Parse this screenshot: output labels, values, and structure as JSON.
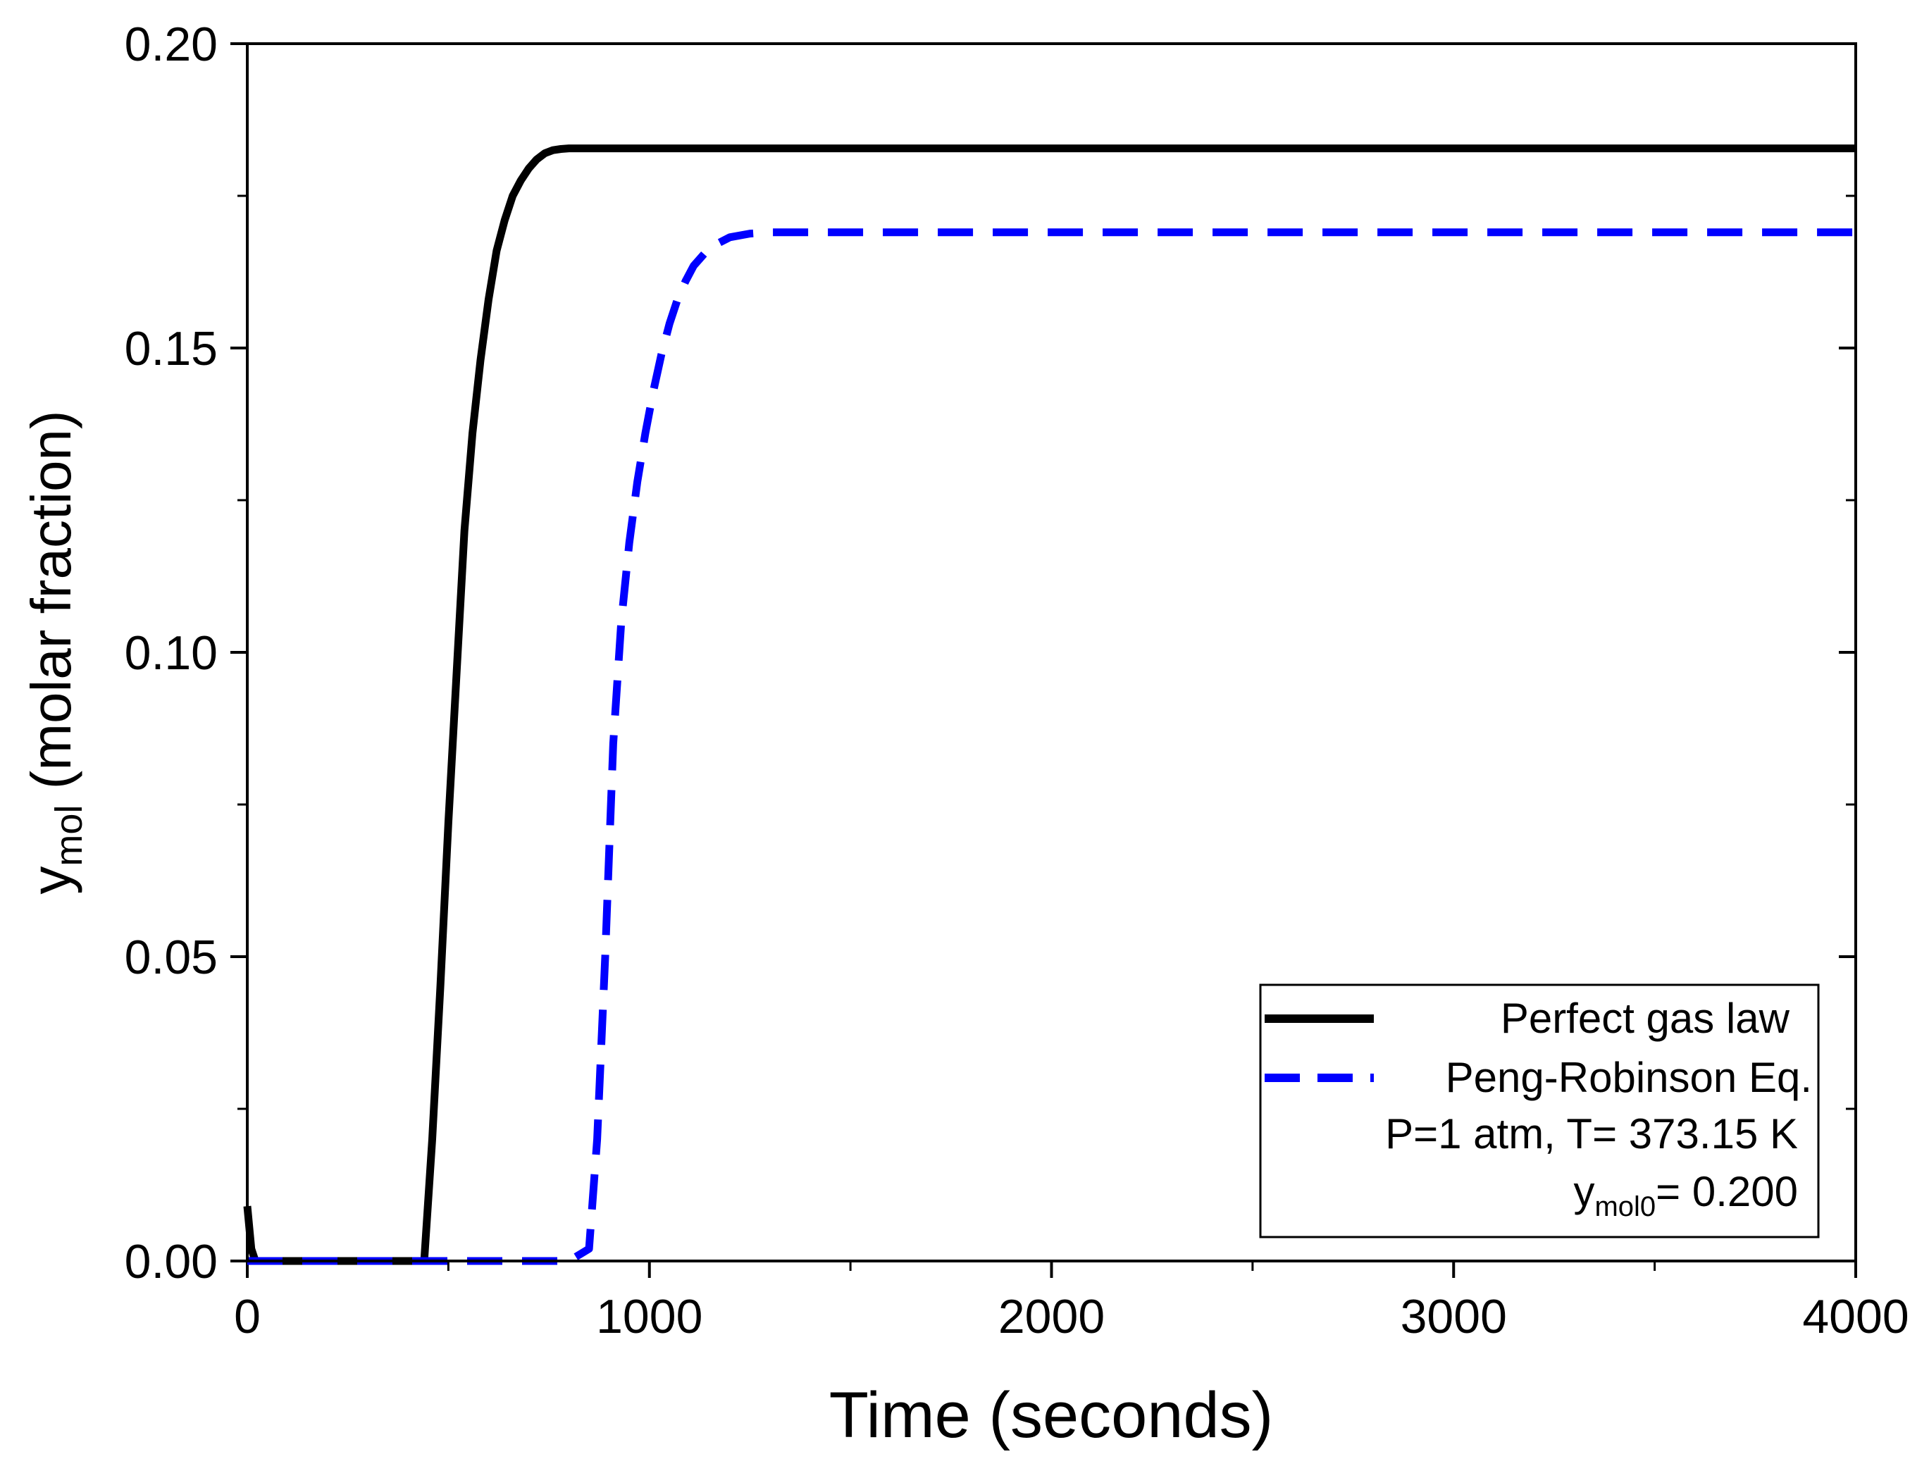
{
  "chart_data": {
    "type": "line",
    "title": "",
    "xlabel": "Time (seconds)",
    "ylabel": {
      "main": "y",
      "sub": "mol",
      "rest": " (molar fraction)"
    },
    "xlim": [
      0,
      4000
    ],
    "ylim": [
      0,
      0.2
    ],
    "x_ticks": [
      0,
      1000,
      2000,
      3000,
      4000
    ],
    "x_tick_labels": [
      "0",
      "1000",
      "2000",
      "3000",
      "4000"
    ],
    "y_ticks": [
      0,
      0.05,
      0.1,
      0.15,
      0.2
    ],
    "y_tick_labels": [
      "0.00",
      "0.05",
      "0.10",
      "0.15",
      "0.20"
    ],
    "grid": false,
    "legend_position": "bottom-right",
    "series": [
      {
        "name": "Perfect gas law",
        "style": "solid",
        "color": "#000000",
        "x": [
          0,
          10,
          20,
          100,
          300,
          440,
          460,
          480,
          500,
          520,
          540,
          560,
          580,
          600,
          620,
          640,
          660,
          680,
          700,
          720,
          740,
          760,
          780,
          800,
          820,
          1000,
          2000,
          3000,
          4000
        ],
        "y": [
          0.009,
          0.002,
          0.0,
          0.0,
          0.0,
          0.0,
          0.02,
          0.045,
          0.072,
          0.096,
          0.12,
          0.136,
          0.148,
          0.158,
          0.166,
          0.171,
          0.175,
          0.1775,
          0.1795,
          0.181,
          0.182,
          0.1825,
          0.1827,
          0.1828,
          0.1828,
          0.1828,
          0.1828,
          0.1828,
          0.1828
        ]
      },
      {
        "name": "Peng-Robinson Eq.",
        "style": "dashed",
        "color": "#0000ff",
        "x": [
          0,
          100,
          400,
          600,
          800,
          850,
          870,
          890,
          910,
          930,
          950,
          970,
          990,
          1010,
          1030,
          1050,
          1070,
          1090,
          1110,
          1150,
          1200,
          1250,
          1300,
          1500,
          2000,
          3000,
          4000
        ],
        "y": [
          0.0,
          0.0,
          0.0,
          0.0,
          0.0,
          0.002,
          0.02,
          0.05,
          0.085,
          0.105,
          0.118,
          0.128,
          0.136,
          0.143,
          0.149,
          0.154,
          0.158,
          0.161,
          0.1635,
          0.1665,
          0.1682,
          0.1688,
          0.169,
          0.169,
          0.169,
          0.169,
          0.169
        ]
      }
    ],
    "legend_notes": {
      "conditions": "P=1 atm, T= 373.15 K",
      "initial_main": "y",
      "initial_sub": "mol0",
      "initial_value": "= 0.200"
    }
  }
}
